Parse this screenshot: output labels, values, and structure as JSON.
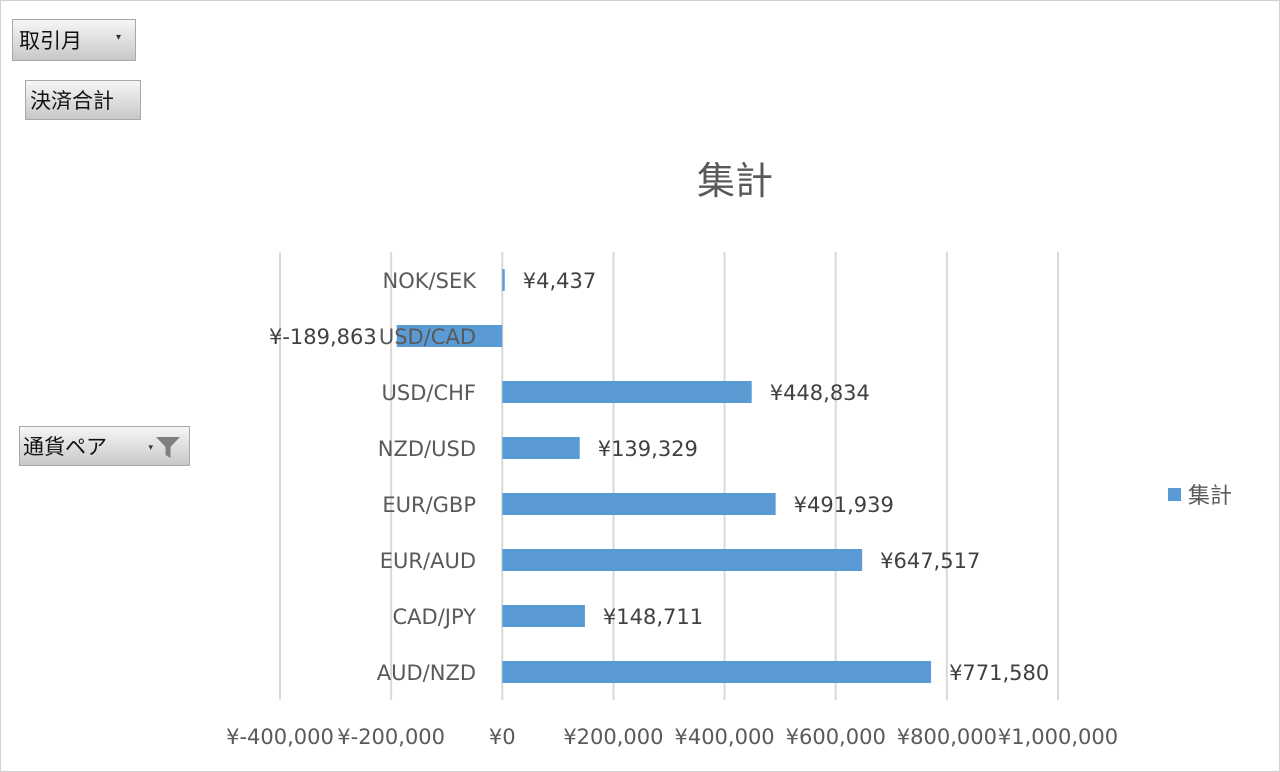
{
  "filters": {
    "month_label": "取引月",
    "value_field_label": "決済合計",
    "axis_field_label": "通貨ペア"
  },
  "icons": {
    "dropdown": "chevron-down-icon",
    "filter": "filter-icon"
  },
  "colors": {
    "bar": "#5B9BD5",
    "grid": "#D9D9D9",
    "text": "#595959"
  },
  "chart_data": {
    "type": "bar",
    "orientation": "horizontal",
    "title": "集計",
    "categories": [
      "NOK/SEK",
      "USD/CAD",
      "USD/CHF",
      "NZD/USD",
      "EUR/GBP",
      "EUR/AUD",
      "CAD/JPY",
      "AUD/NZD"
    ],
    "series": [
      {
        "name": "集計",
        "values": [
          4437,
          -189863,
          448834,
          139329,
          491939,
          647517,
          148711,
          771580
        ]
      }
    ],
    "data_labels": [
      "¥4,437",
      "¥-189,863",
      "¥448,834",
      "¥139,329",
      "¥491,939",
      "¥647,517",
      "¥148,711",
      "¥771,580"
    ],
    "x_ticks": [
      -400000,
      -200000,
      0,
      200000,
      400000,
      600000,
      800000,
      1000000
    ],
    "x_tick_labels": [
      "¥-400,000",
      "¥-200,000",
      "¥0",
      "¥200,000",
      "¥400,000",
      "¥600,000",
      "¥800,000",
      "¥1,000,000"
    ],
    "xlim": [
      -400000,
      1000000
    ],
    "grid": true,
    "legend": "right"
  }
}
